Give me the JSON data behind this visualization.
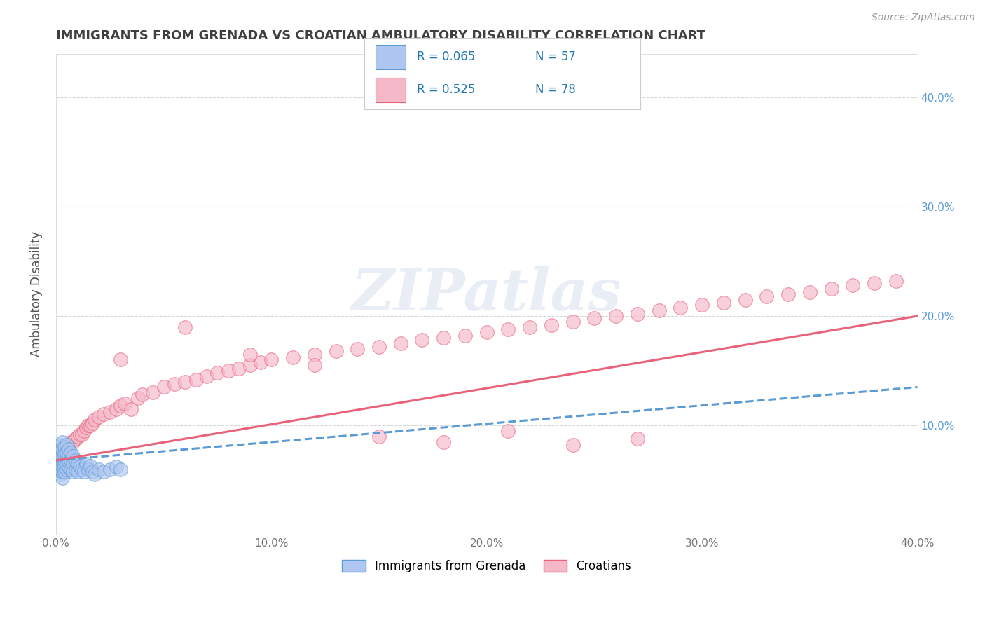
{
  "title": "IMMIGRANTS FROM GRENADA VS CROATIAN AMBULATORY DISABILITY CORRELATION CHART",
  "source": "Source: ZipAtlas.com",
  "ylabel": "Ambulatory Disability",
  "xlim": [
    0.0,
    0.4
  ],
  "ylim": [
    0.0,
    0.44
  ],
  "xticks": [
    0.0,
    0.1,
    0.2,
    0.3,
    0.4
  ],
  "yticks": [
    0.0,
    0.1,
    0.2,
    0.3,
    0.4
  ],
  "xticklabels": [
    "0.0%",
    "10.0%",
    "20.0%",
    "30.0%",
    "40.0%"
  ],
  "right_yticklabels": [
    "",
    "10.0%",
    "20.0%",
    "30.0%",
    "40.0%"
  ],
  "watermark": "ZIPatlas",
  "blue_scatter_x": [
    0.001,
    0.001,
    0.001,
    0.001,
    0.001,
    0.002,
    0.002,
    0.002,
    0.002,
    0.002,
    0.002,
    0.002,
    0.002,
    0.003,
    0.003,
    0.003,
    0.003,
    0.003,
    0.003,
    0.003,
    0.004,
    0.004,
    0.004,
    0.004,
    0.004,
    0.005,
    0.005,
    0.005,
    0.005,
    0.005,
    0.006,
    0.006,
    0.006,
    0.006,
    0.007,
    0.007,
    0.007,
    0.008,
    0.008,
    0.008,
    0.009,
    0.009,
    0.01,
    0.01,
    0.011,
    0.012,
    0.013,
    0.014,
    0.015,
    0.016,
    0.017,
    0.018,
    0.02,
    0.022,
    0.025,
    0.028,
    0.03
  ],
  "blue_scatter_y": [
    0.06,
    0.065,
    0.07,
    0.075,
    0.08,
    0.055,
    0.06,
    0.065,
    0.068,
    0.072,
    0.075,
    0.078,
    0.082,
    0.052,
    0.058,
    0.063,
    0.068,
    0.072,
    0.078,
    0.085,
    0.058,
    0.063,
    0.068,
    0.073,
    0.08,
    0.06,
    0.065,
    0.07,
    0.075,
    0.082,
    0.062,
    0.067,
    0.073,
    0.078,
    0.06,
    0.068,
    0.075,
    0.058,
    0.065,
    0.072,
    0.06,
    0.068,
    0.058,
    0.065,
    0.062,
    0.06,
    0.058,
    0.065,
    0.06,
    0.063,
    0.058,
    0.055,
    0.06,
    0.058,
    0.06,
    0.062,
    0.06
  ],
  "pink_scatter_x": [
    0.001,
    0.002,
    0.003,
    0.004,
    0.005,
    0.006,
    0.007,
    0.008,
    0.009,
    0.01,
    0.011,
    0.012,
    0.013,
    0.014,
    0.015,
    0.016,
    0.017,
    0.018,
    0.02,
    0.022,
    0.025,
    0.028,
    0.03,
    0.032,
    0.035,
    0.038,
    0.04,
    0.045,
    0.05,
    0.055,
    0.06,
    0.065,
    0.07,
    0.075,
    0.08,
    0.085,
    0.09,
    0.095,
    0.1,
    0.11,
    0.12,
    0.13,
    0.14,
    0.15,
    0.16,
    0.17,
    0.18,
    0.19,
    0.2,
    0.21,
    0.22,
    0.23,
    0.24,
    0.25,
    0.26,
    0.27,
    0.28,
    0.29,
    0.3,
    0.31,
    0.32,
    0.33,
    0.34,
    0.35,
    0.36,
    0.37,
    0.38,
    0.39,
    0.03,
    0.06,
    0.09,
    0.12,
    0.15,
    0.18,
    0.21,
    0.24,
    0.27
  ],
  "pink_scatter_y": [
    0.065,
    0.068,
    0.072,
    0.075,
    0.078,
    0.082,
    0.085,
    0.085,
    0.088,
    0.09,
    0.092,
    0.092,
    0.095,
    0.098,
    0.1,
    0.1,
    0.102,
    0.105,
    0.108,
    0.11,
    0.112,
    0.115,
    0.118,
    0.12,
    0.115,
    0.125,
    0.128,
    0.13,
    0.135,
    0.138,
    0.14,
    0.142,
    0.145,
    0.148,
    0.15,
    0.152,
    0.155,
    0.158,
    0.16,
    0.162,
    0.165,
    0.168,
    0.17,
    0.172,
    0.175,
    0.178,
    0.18,
    0.182,
    0.185,
    0.188,
    0.19,
    0.192,
    0.195,
    0.198,
    0.2,
    0.202,
    0.205,
    0.208,
    0.21,
    0.212,
    0.215,
    0.218,
    0.22,
    0.222,
    0.225,
    0.228,
    0.23,
    0.232,
    0.16,
    0.19,
    0.165,
    0.155,
    0.09,
    0.085,
    0.095,
    0.082,
    0.088
  ],
  "blue_line_x": [
    0.0,
    0.4
  ],
  "blue_line_y": [
    0.068,
    0.135
  ],
  "pink_line_x": [
    0.0,
    0.4
  ],
  "pink_line_y": [
    0.068,
    0.2
  ],
  "blue_color": "#5b9bd5",
  "pink_color": "#e8637a",
  "blue_fill": "#aec6f0",
  "pink_fill": "#f4b8c8",
  "background_color": "#ffffff",
  "grid_color": "#cccccc",
  "title_color": "#404040",
  "axis_label_color": "#555555",
  "tick_label_color": "#777777",
  "right_tick_color": "#5b9bd5",
  "legend_r_color": "#1f77b4",
  "legend_n_color": "#1f77b4"
}
